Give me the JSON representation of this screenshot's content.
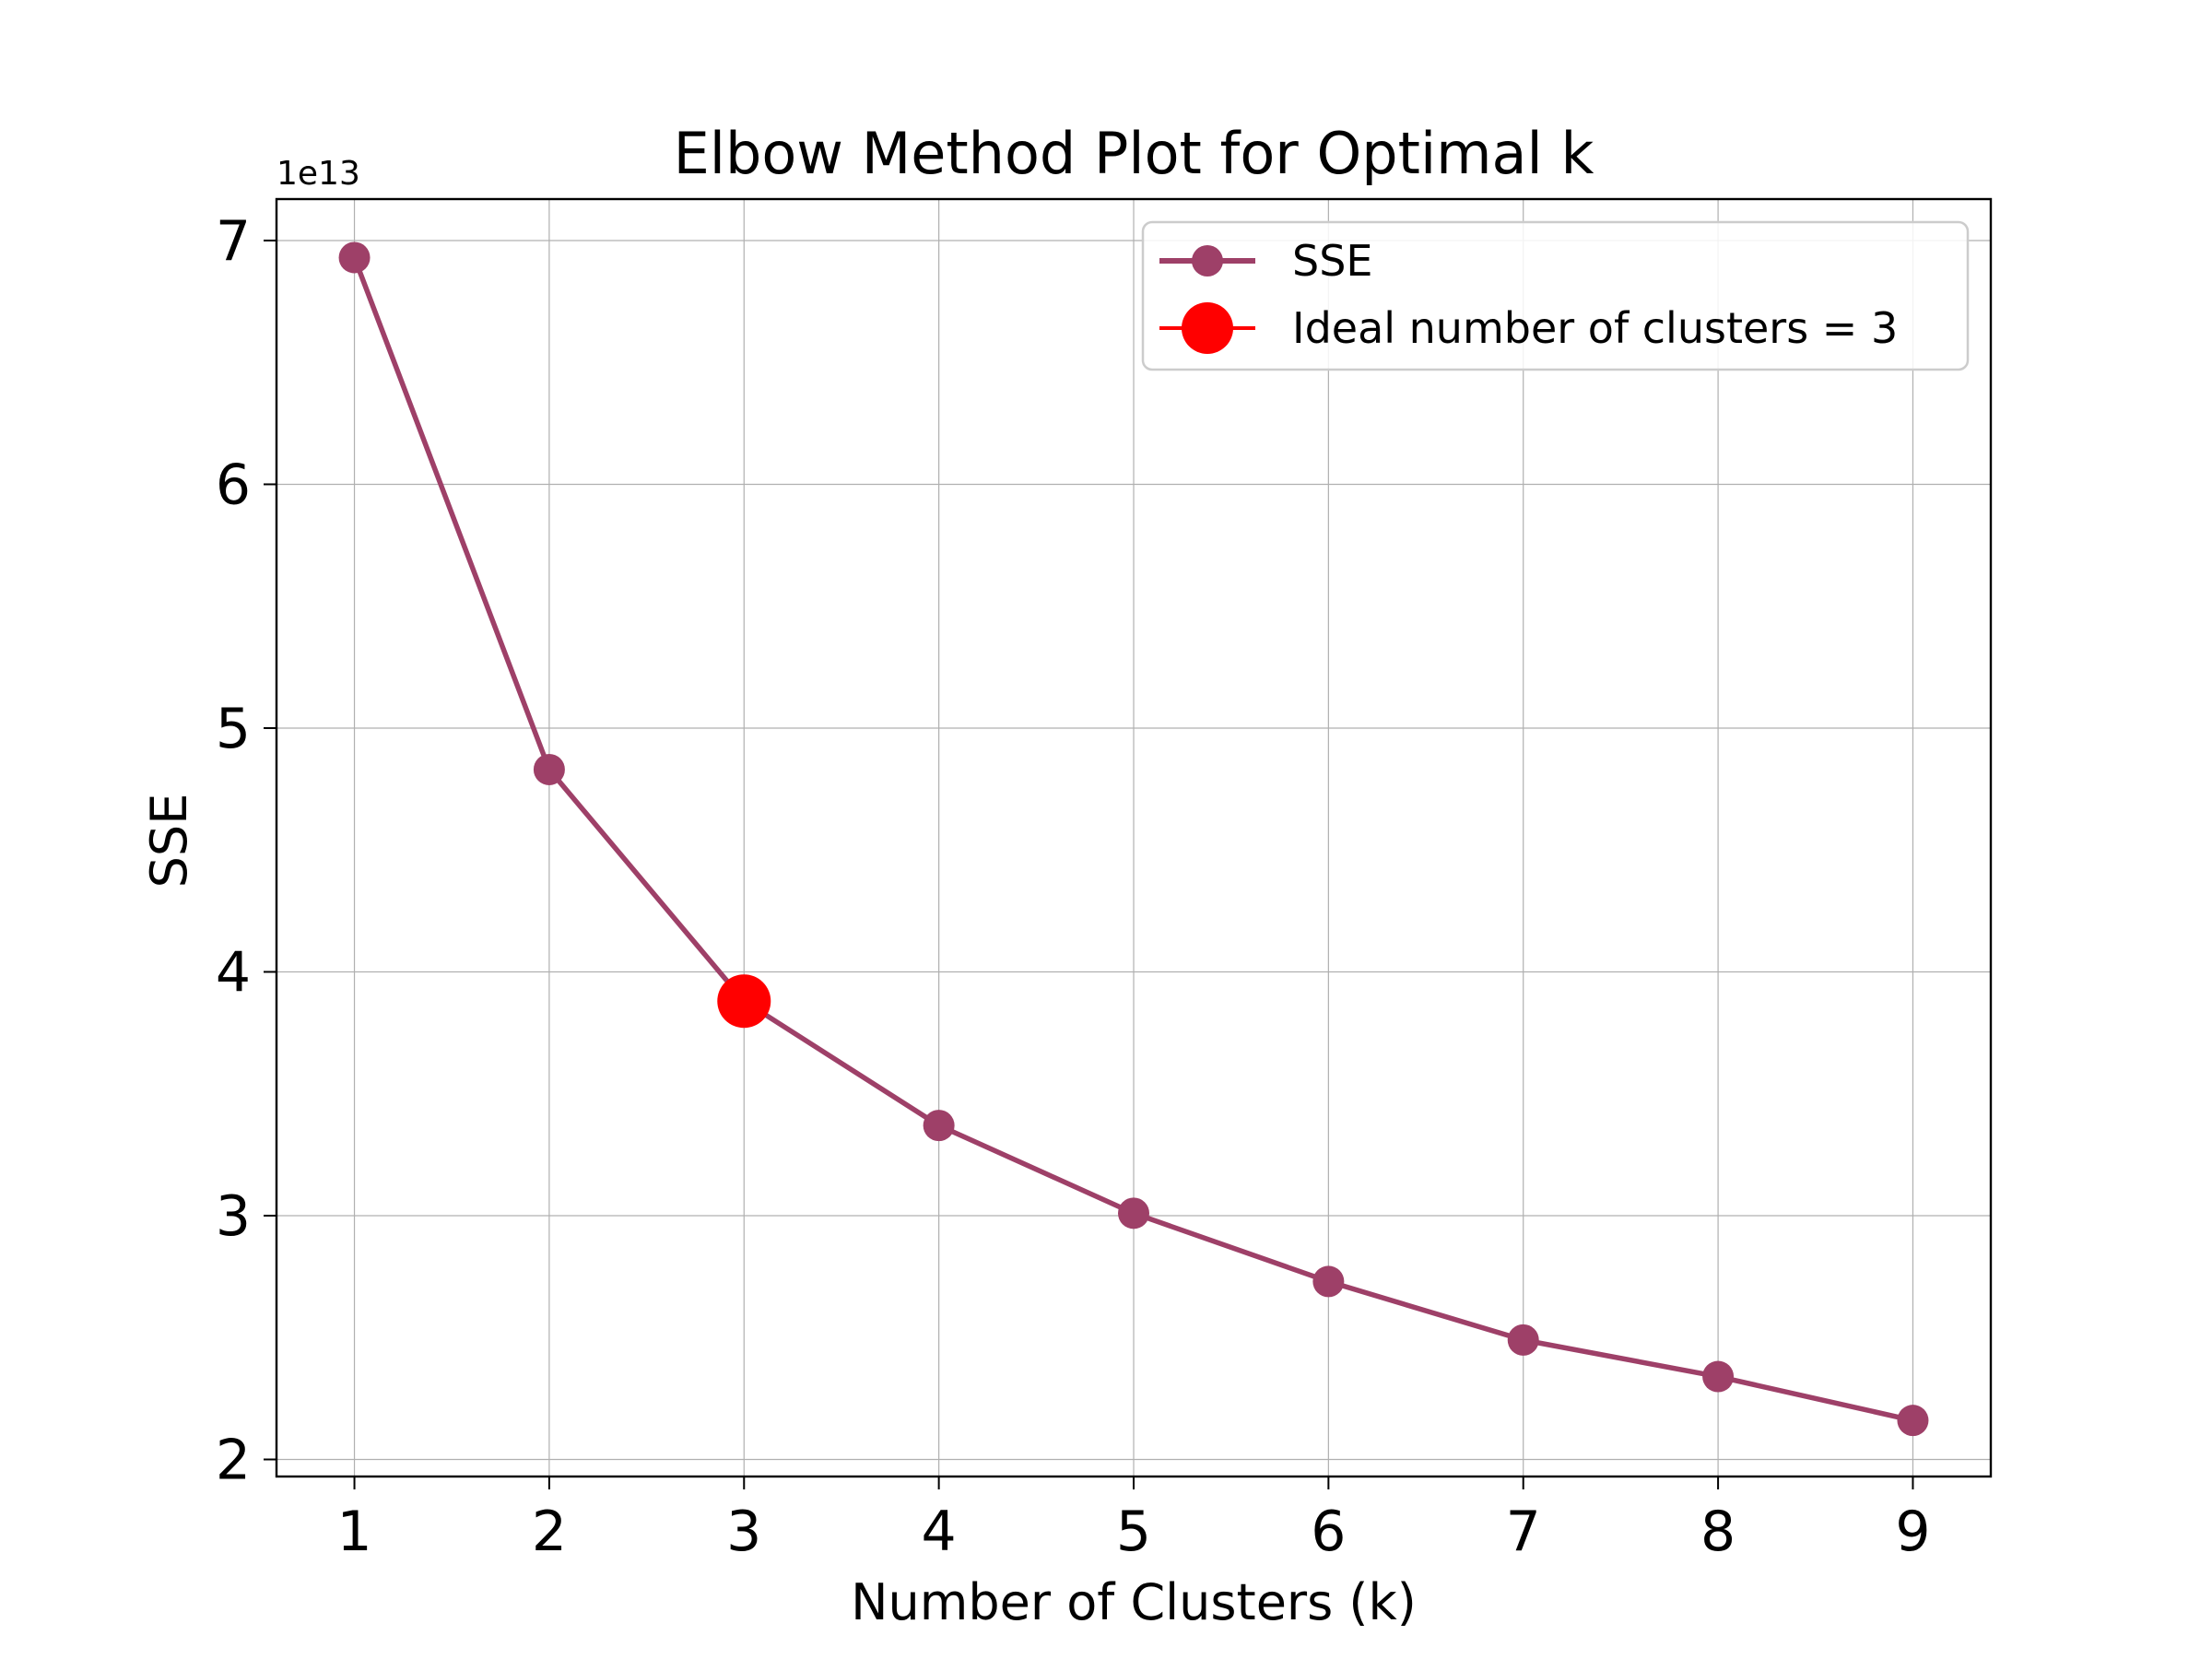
{
  "chart_data": {
    "type": "line",
    "title": "Elbow Method Plot for Optimal k",
    "xlabel": "Number of Clusters (k)",
    "ylabel": "SSE",
    "y_offset_label": "1e13",
    "y_scale_factor": 10000000000000.0,
    "x": [
      1,
      2,
      3,
      4,
      5,
      6,
      7,
      8,
      9
    ],
    "x_ticks": [
      1,
      2,
      3,
      4,
      5,
      6,
      7,
      8,
      9
    ],
    "y_ticks": [
      2,
      3,
      4,
      5,
      6,
      7
    ],
    "xlim": [
      0.6,
      9.4
    ],
    "ylim": [
      1.93,
      7.17
    ],
    "grid": true,
    "legend_position": "top-right",
    "series": [
      {
        "name": "SSE",
        "values": [
          6.93,
          4.83,
          3.88,
          3.37,
          3.01,
          2.73,
          2.49,
          2.34,
          2.16
        ],
        "color": "#9e4068"
      },
      {
        "name": "Ideal number of clusters = 3",
        "x": [
          3
        ],
        "values": [
          3.88
        ],
        "color": "#ff0000"
      }
    ]
  }
}
